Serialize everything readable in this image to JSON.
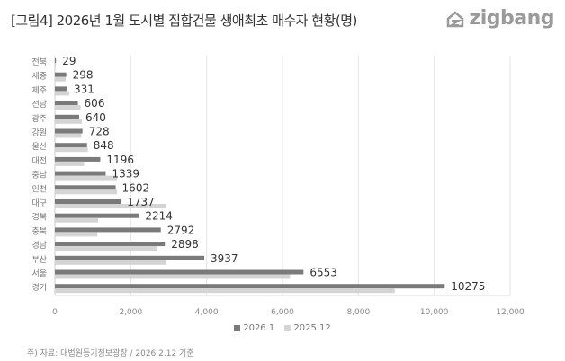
{
  "title": "[그림4] 2026년 1월 도시별 집합건물 생애최초 매수자 현황(명)",
  "logo": {
    "text": "zigbang",
    "color": "#9a9a9a"
  },
  "footnote": "주) 자료: 대법원등기정보광장 / 2026.2.12 기준",
  "chart_data": {
    "type": "bar",
    "orientation": "horizontal",
    "categories": [
      "전북",
      "세종",
      "제주",
      "전남",
      "광주",
      "강원",
      "울산",
      "대전",
      "충남",
      "인천",
      "대구",
      "경북",
      "충북",
      "경남",
      "부산",
      "서울",
      "경기"
    ],
    "series": [
      {
        "name": "2026.1",
        "color": "#7a7a7a",
        "values": [
          29,
          298,
          331,
          606,
          640,
          728,
          848,
          1196,
          1339,
          1602,
          1737,
          2214,
          2792,
          2898,
          3937,
          6553,
          10275
        ],
        "data_labels": true
      },
      {
        "name": "2025.12",
        "color": "#d4d4d4",
        "values": [
          25,
          284,
          380,
          680,
          710,
          700,
          870,
          770,
          1640,
          1640,
          2920,
          1140,
          1120,
          2700,
          2940,
          6200,
          8960
        ]
      }
    ],
    "xlim": [
      0,
      12000
    ],
    "xticks": [
      "0",
      "2,000",
      "4,000",
      "6,000",
      "8,000",
      "10,000",
      "12,000"
    ],
    "grid": true,
    "legend": "bottom"
  }
}
